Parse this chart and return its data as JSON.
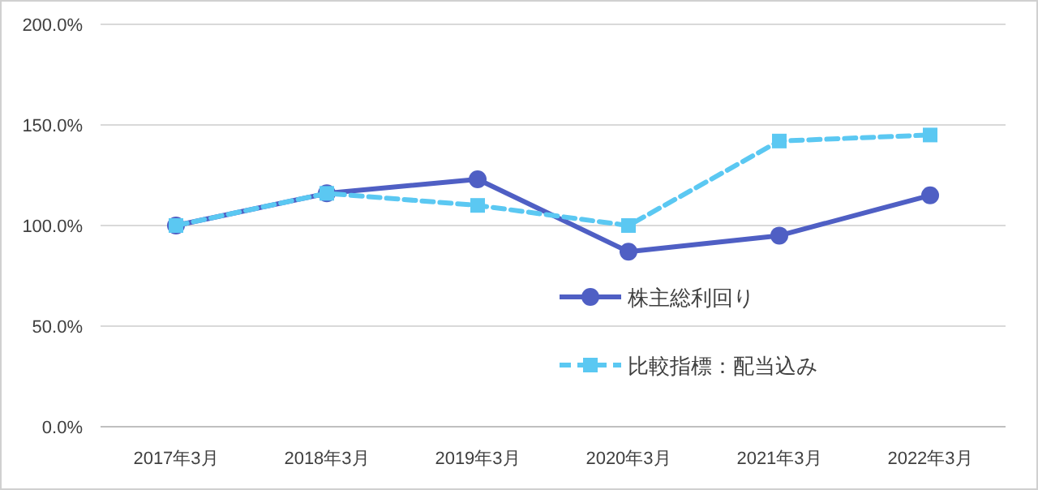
{
  "chart_data": {
    "type": "line",
    "categories": [
      "2017年3月",
      "2018年3月",
      "2019年3月",
      "2020年3月",
      "2021年3月",
      "2022年3月"
    ],
    "series": [
      {
        "name": "株主総利回り",
        "color": "#4f5fc4",
        "values": [
          100,
          116,
          123,
          87,
          95,
          115
        ],
        "marker": "circle",
        "line_style": "solid"
      },
      {
        "name": "比較指標：配当込み",
        "color": "#5bc8f2",
        "values": [
          100,
          116,
          110,
          100,
          142,
          145
        ],
        "marker": "square",
        "line_style": "dashed"
      }
    ],
    "ylim": [
      0,
      200
    ],
    "yticks": [
      {
        "value": 0,
        "label": "0.0%"
      },
      {
        "value": 50,
        "label": "50.0%"
      },
      {
        "value": 100,
        "label": "100.0%"
      },
      {
        "value": 150,
        "label": "150.0%"
      },
      {
        "value": 200,
        "label": "200.0%"
      }
    ],
    "grid": "y",
    "legend": "right"
  }
}
